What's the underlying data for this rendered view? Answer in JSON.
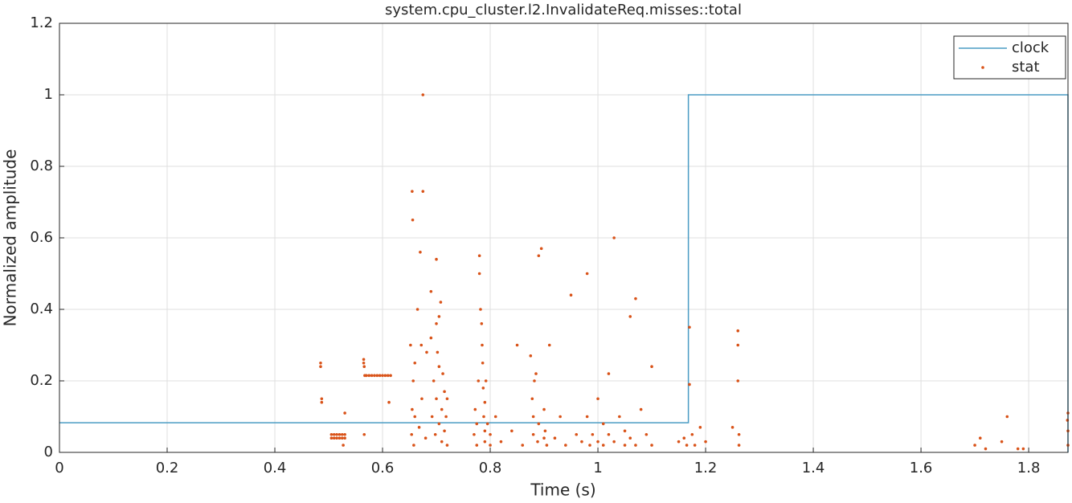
{
  "chart_data": {
    "type": "line",
    "title": "system.cpu_cluster.l2.InvalidateReq.misses::total",
    "x_label": "Time (s)",
    "y_label": "Normalized amplitude",
    "xlim": [
      0,
      1.873
    ],
    "ylim": [
      0,
      1.2
    ],
    "xticks": [
      0,
      0.2,
      0.4,
      0.6,
      0.8,
      1,
      1.2,
      1.4,
      1.6,
      1.8
    ],
    "yticks": [
      0,
      0.2,
      0.4,
      0.6,
      0.8,
      1,
      1.2
    ],
    "grid": true,
    "legend": "upper right",
    "series": [
      {
        "name": "clock",
        "color": "#4a9cc4",
        "style": "line",
        "x": [
          0,
          1.168,
          1.168,
          1.873,
          1.873
        ],
        "values": [
          0.083,
          0.083,
          1,
          1,
          0
        ]
      },
      {
        "name": "stat",
        "color": "#d95319",
        "style": "points",
        "x": [
          0.485,
          0.485,
          0.487,
          0.487,
          0.505,
          0.51,
          0.515,
          0.52,
          0.525,
          0.53,
          0.505,
          0.51,
          0.515,
          0.52,
          0.525,
          0.53,
          0.53,
          0.527,
          0.565,
          0.565,
          0.566,
          0.567,
          0.566,
          0.57,
          0.575,
          0.58,
          0.585,
          0.59,
          0.595,
          0.6,
          0.605,
          0.61,
          0.615,
          0.612,
          0.652,
          0.655,
          0.656,
          0.657,
          0.655,
          0.654,
          0.658,
          0.66,
          0.66,
          0.665,
          0.668,
          0.67,
          0.672,
          0.675,
          0.675,
          0.673,
          0.68,
          0.682,
          0.69,
          0.69,
          0.692,
          0.695,
          0.698,
          0.7,
          0.7,
          0.702,
          0.705,
          0.705,
          0.708,
          0.71,
          0.71,
          0.712,
          0.715,
          0.715,
          0.718,
          0.72,
          0.72,
          0.7,
          0.705,
          0.77,
          0.772,
          0.775,
          0.775,
          0.778,
          0.78,
          0.78,
          0.782,
          0.784,
          0.785,
          0.786,
          0.787,
          0.788,
          0.79,
          0.79,
          0.79,
          0.792,
          0.795,
          0.8,
          0.8,
          0.81,
          0.82,
          0.84,
          0.85,
          0.86,
          0.875,
          0.878,
          0.88,
          0.88,
          0.882,
          0.885,
          0.888,
          0.89,
          0.89,
          0.895,
          0.9,
          0.9,
          0.902,
          0.905,
          0.91,
          0.92,
          0.93,
          0.94,
          0.95,
          0.96,
          0.97,
          0.98,
          0.98,
          0.985,
          0.99,
          1.0,
          1.0,
          1.01,
          1.01,
          1.02,
          1.02,
          1.03,
          1.03,
          1.04,
          1.05,
          1.05,
          1.06,
          1.06,
          1.07,
          1.07,
          1.08,
          1.09,
          1.1,
          1.1,
          1.15,
          1.16,
          1.165,
          1.17,
          1.17,
          1.175,
          1.18,
          1.19,
          1.2,
          1.26,
          1.26,
          1.26,
          1.262,
          1.262,
          1.25,
          1.7,
          1.71,
          1.72,
          1.75,
          1.76,
          1.78,
          1.79,
          1.873,
          1.873,
          1.873,
          1.872
        ],
        "values": [
          0.25,
          0.24,
          0.15,
          0.14,
          0.04,
          0.04,
          0.04,
          0.04,
          0.04,
          0.04,
          0.05,
          0.05,
          0.05,
          0.05,
          0.05,
          0.05,
          0.11,
          0.02,
          0.26,
          0.25,
          0.24,
          0.215,
          0.05,
          0.215,
          0.215,
          0.215,
          0.215,
          0.215,
          0.215,
          0.215,
          0.215,
          0.215,
          0.215,
          0.14,
          0.3,
          0.73,
          0.65,
          0.2,
          0.12,
          0.05,
          0.02,
          0.1,
          0.25,
          0.4,
          0.07,
          0.56,
          0.3,
          1.0,
          0.73,
          0.15,
          0.04,
          0.28,
          0.45,
          0.32,
          0.1,
          0.2,
          0.05,
          0.15,
          0.54,
          0.28,
          0.38,
          0.08,
          0.42,
          0.12,
          0.03,
          0.22,
          0.17,
          0.06,
          0.1,
          0.15,
          0.02,
          0.36,
          0.24,
          0.05,
          0.12,
          0.02,
          0.08,
          0.2,
          0.55,
          0.5,
          0.4,
          0.36,
          0.3,
          0.25,
          0.18,
          0.1,
          0.06,
          0.03,
          0.14,
          0.2,
          0.08,
          0.02,
          0.05,
          0.1,
          0.03,
          0.06,
          0.3,
          0.02,
          0.27,
          0.15,
          0.05,
          0.1,
          0.2,
          0.22,
          0.03,
          0.08,
          0.55,
          0.57,
          0.12,
          0.04,
          0.06,
          0.02,
          0.3,
          0.04,
          0.1,
          0.02,
          0.44,
          0.05,
          0.03,
          0.5,
          0.1,
          0.02,
          0.05,
          0.15,
          0.03,
          0.08,
          0.02,
          0.22,
          0.05,
          0.6,
          0.03,
          0.1,
          0.02,
          0.06,
          0.38,
          0.04,
          0.43,
          0.02,
          0.12,
          0.05,
          0.24,
          0.02,
          0.03,
          0.04,
          0.02,
          0.35,
          0.19,
          0.05,
          0.02,
          0.07,
          0.03,
          0.34,
          0.3,
          0.2,
          0.05,
          0.02,
          0.07,
          0.02,
          0.04,
          0.01,
          0.03,
          0.1,
          0.01,
          0.01,
          0.11,
          0.06,
          0.02,
          0.09
        ]
      }
    ]
  }
}
